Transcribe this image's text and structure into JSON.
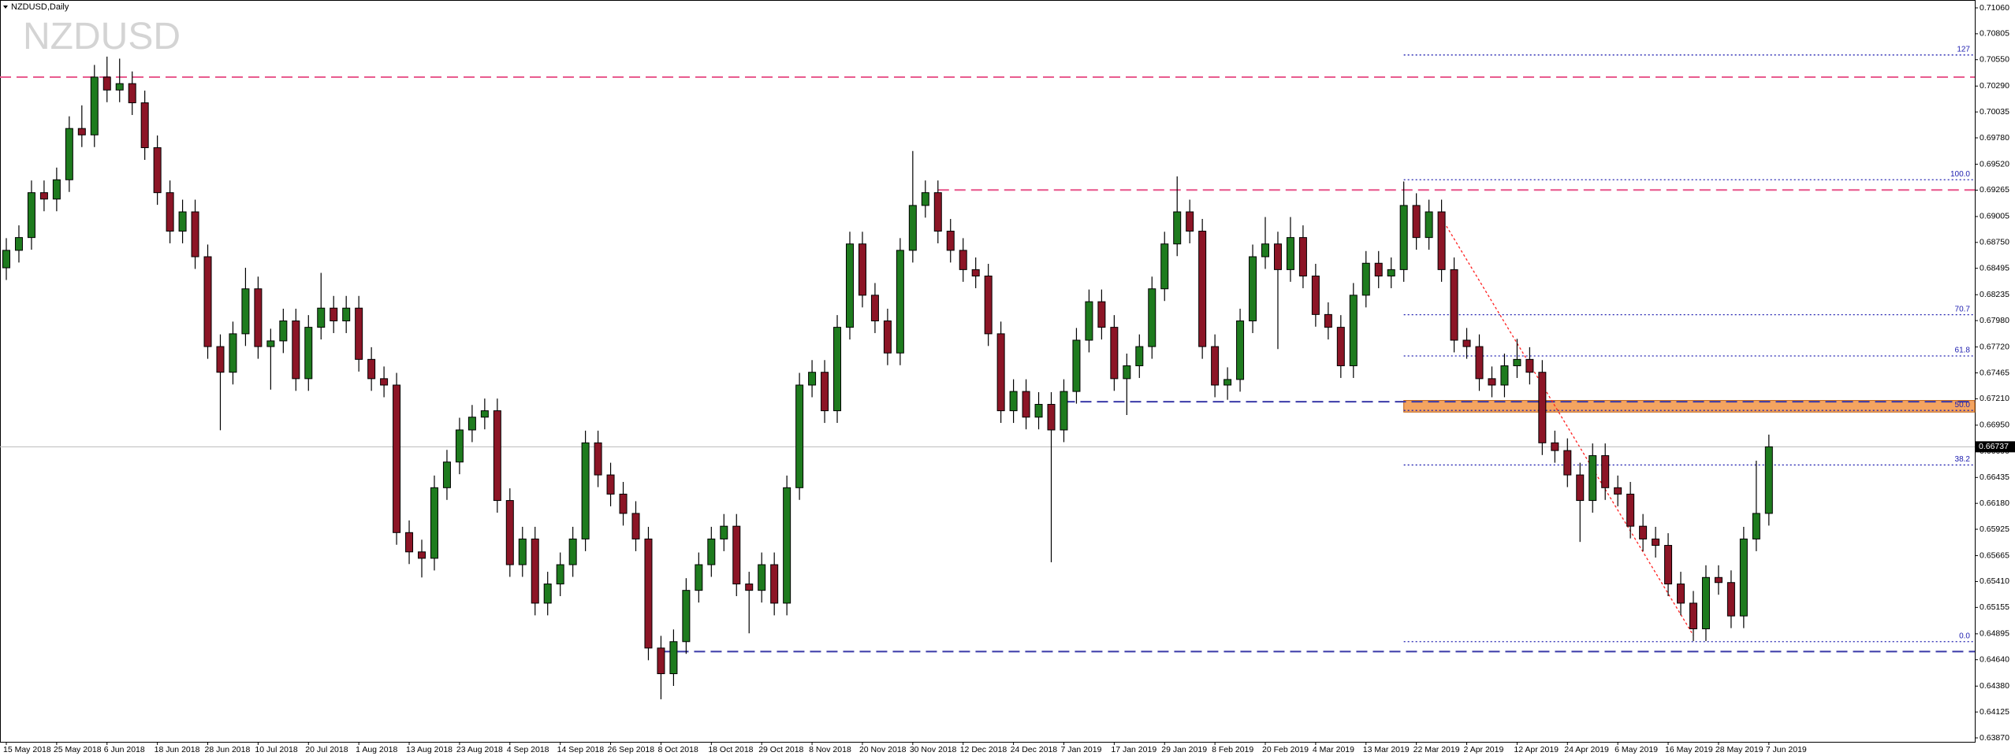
{
  "chart_data": {
    "type": "candlestick",
    "title": "NZDUSD,Daily",
    "watermark": "NZDUSD",
    "categories": [
      "15 May 2018",
      null,
      null,
      null,
      "25 May 2018",
      null,
      null,
      null,
      "6 Jun 2018",
      null,
      null,
      null,
      "18 Jun 2018",
      null,
      null,
      null,
      "28 Jun 2018",
      null,
      null,
      null,
      "10 Jul 2018",
      null,
      null,
      null,
      "20 Jul 2018",
      null,
      null,
      null,
      "1 Aug 2018",
      null,
      null,
      null,
      "13 Aug 2018",
      null,
      null,
      null,
      "23 Aug 2018",
      null,
      null,
      null,
      "4 Sep 2018",
      null,
      null,
      null,
      "14 Sep 2018",
      null,
      null,
      null,
      "26 Sep 2018",
      null,
      null,
      null,
      "8 Oct 2018",
      null,
      null,
      null,
      "18 Oct 2018",
      null,
      null,
      null,
      "29 Oct 2018",
      null,
      null,
      null,
      "8 Nov 2018",
      null,
      null,
      null,
      "20 Nov 2018",
      null,
      null,
      null,
      "30 Nov 2018",
      null,
      null,
      null,
      "12 Dec 2018",
      null,
      null,
      null,
      "24 Dec 2018",
      null,
      null,
      null,
      "7 Jan 2019",
      null,
      null,
      null,
      "17 Jan 2019",
      null,
      null,
      null,
      "29 Jan 2019",
      null,
      null,
      null,
      "8 Feb 2019",
      null,
      null,
      null,
      "20 Feb 2019",
      null,
      null,
      null,
      "4 Mar 2019",
      null,
      null,
      null,
      "13 Mar 2019",
      null,
      null,
      null,
      "22 Mar 2019",
      null,
      null,
      null,
      "2 Apr 2019",
      null,
      null,
      null,
      "12 Apr 2019",
      null,
      null,
      null,
      "24 Apr 2019",
      null,
      null,
      null,
      "6 May 2019",
      null,
      null,
      null,
      "16 May 2019",
      null,
      null,
      null,
      "28 May 2019",
      null,
      null,
      null,
      "7 Jun 2019"
    ],
    "candles": {
      "open": [
        0.685,
        0.68672,
        0.68798,
        0.6924,
        0.69177,
        0.69367,
        0.69872,
        0.69809,
        0.70378,
        0.70251,
        0.70314,
        0.70125,
        0.69683,
        0.6924,
        0.68861,
        0.69051,
        0.68609,
        0.67724,
        0.67471,
        0.6785,
        0.68293,
        0.67724,
        0.6778,
        0.67977,
        0.67408,
        0.67914,
        0.68103,
        0.67977,
        0.68103,
        0.67598,
        0.67408,
        0.67345,
        0.65892,
        0.65702,
        0.65639,
        0.66334,
        0.66587,
        0.66903,
        0.67029,
        0.67092,
        0.66208,
        0.65576,
        0.65829,
        0.65197,
        0.65386,
        0.65576,
        0.65829,
        0.66776,
        0.6646,
        0.66271,
        0.66081,
        0.65829,
        0.64755,
        0.64502,
        0.64818,
        0.65323,
        0.65576,
        0.65829,
        0.65955,
        0.65386,
        0.65323,
        0.65576,
        0.65197,
        0.66334,
        0.67345,
        0.67471,
        0.67092,
        0.67914,
        0.68735,
        0.6823,
        0.67977,
        0.67661,
        0.68672,
        0.69114,
        0.6924,
        0.68861,
        0.68672,
        0.68482,
        0.68419,
        0.6785,
        0.67092,
        0.67282,
        0.67029,
        0.67155,
        0.66903,
        0.67282,
        0.67787,
        0.68166,
        0.67914,
        0.67408,
        0.67535,
        0.67724,
        0.68293,
        0.68735,
        0.69051,
        0.68861,
        0.67724,
        0.67345,
        0.674,
        0.67977,
        0.68609,
        0.68735,
        0.68482,
        0.68798,
        0.68419,
        0.6804,
        0.67914,
        0.67535,
        0.6823,
        0.68545,
        0.68419,
        0.68482,
        0.69114,
        0.68798,
        0.69051,
        0.68482,
        0.67787,
        0.67724,
        0.67408,
        0.67345,
        0.67535,
        0.67598,
        0.67471,
        0.66776,
        0.667,
        0.6646,
        0.66208,
        0.6665,
        0.66334,
        0.66271,
        0.65955,
        0.65829,
        0.65766,
        0.65386,
        0.65197,
        0.64944,
        0.6545,
        0.654,
        0.65071,
        0.65829,
        0.66081
      ],
      "high": [
        0.68792,
        0.68918,
        0.6936,
        0.6936,
        0.69487,
        0.69992,
        0.701,
        0.70498,
        0.7058,
        0.7056,
        0.70434,
        0.70245,
        0.69803,
        0.6936,
        0.69171,
        0.69171,
        0.68729,
        0.67844,
        0.6797,
        0.685,
        0.68413,
        0.679,
        0.68097,
        0.68097,
        0.68034,
        0.6845,
        0.68223,
        0.68223,
        0.68223,
        0.67718,
        0.67528,
        0.67465,
        0.66012,
        0.65822,
        0.66454,
        0.66707,
        0.67023,
        0.67149,
        0.67212,
        0.67212,
        0.66328,
        0.65949,
        0.65949,
        0.65506,
        0.65696,
        0.65949,
        0.66896,
        0.66896,
        0.6658,
        0.66391,
        0.66201,
        0.65949,
        0.64875,
        0.64938,
        0.65443,
        0.65696,
        0.65949,
        0.66075,
        0.66075,
        0.65506,
        0.65696,
        0.65696,
        0.66454,
        0.67465,
        0.67591,
        0.67591,
        0.68034,
        0.68855,
        0.68855,
        0.6835,
        0.68097,
        0.68792,
        0.6965,
        0.6936,
        0.6936,
        0.68981,
        0.68792,
        0.68602,
        0.68539,
        0.6797,
        0.67402,
        0.67402,
        0.67275,
        0.67275,
        0.67402,
        0.67907,
        0.68286,
        0.68286,
        0.68034,
        0.67655,
        0.67844,
        0.68413,
        0.68855,
        0.694,
        0.69171,
        0.68981,
        0.67844,
        0.6752,
        0.68097,
        0.68729,
        0.69,
        0.68855,
        0.69,
        0.68918,
        0.68539,
        0.6816,
        0.68034,
        0.6835,
        0.68665,
        0.68665,
        0.68602,
        0.6935,
        0.69234,
        0.69171,
        0.69171,
        0.68602,
        0.67907,
        0.67844,
        0.67528,
        0.67655,
        0.678,
        0.67718,
        0.67591,
        0.66896,
        0.6682,
        0.6658,
        0.6677,
        0.6677,
        0.66454,
        0.66391,
        0.66075,
        0.65949,
        0.65886,
        0.65506,
        0.65317,
        0.6557,
        0.6557,
        0.6552,
        0.65949,
        0.666,
        0.66857
      ],
      "low": [
        0.6838,
        0.68552,
        0.68678,
        0.69057,
        0.69057,
        0.69247,
        0.69689,
        0.69689,
        0.70131,
        0.70131,
        0.70005,
        0.69563,
        0.6912,
        0.68741,
        0.68741,
        0.68489,
        0.67604,
        0.669,
        0.67351,
        0.6773,
        0.67604,
        0.673,
        0.6766,
        0.67288,
        0.67288,
        0.67794,
        0.67857,
        0.67857,
        0.67478,
        0.67288,
        0.67225,
        0.65772,
        0.65582,
        0.6545,
        0.65519,
        0.66214,
        0.66467,
        0.66783,
        0.66909,
        0.66088,
        0.65456,
        0.65456,
        0.65077,
        0.65077,
        0.65266,
        0.65456,
        0.65709,
        0.6634,
        0.66151,
        0.65961,
        0.65709,
        0.64635,
        0.6425,
        0.64382,
        0.64698,
        0.65203,
        0.65456,
        0.65709,
        0.65266,
        0.649,
        0.65203,
        0.65077,
        0.65077,
        0.66214,
        0.67225,
        0.66972,
        0.66972,
        0.67794,
        0.6811,
        0.67857,
        0.67541,
        0.67541,
        0.68552,
        0.68994,
        0.68741,
        0.68552,
        0.68362,
        0.68299,
        0.6773,
        0.66972,
        0.66972,
        0.66909,
        0.66909,
        0.656,
        0.66783,
        0.67162,
        0.67667,
        0.67794,
        0.67288,
        0.6705,
        0.67415,
        0.67604,
        0.68173,
        0.68615,
        0.68741,
        0.67604,
        0.67225,
        0.672,
        0.6728,
        0.67857,
        0.68489,
        0.677,
        0.68362,
        0.68299,
        0.6792,
        0.67794,
        0.67415,
        0.67415,
        0.6811,
        0.68299,
        0.68299,
        0.68362,
        0.68678,
        0.68678,
        0.68362,
        0.67667,
        0.67604,
        0.67288,
        0.67225,
        0.67225,
        0.67415,
        0.67351,
        0.66656,
        0.6658,
        0.6634,
        0.658,
        0.66088,
        0.66214,
        0.66151,
        0.65835,
        0.65709,
        0.65646,
        0.65266,
        0.65077,
        0.64824,
        0.64824,
        0.6528,
        0.64951,
        0.64951,
        0.65709,
        0.65961
      ],
      "close": [
        0.68672,
        0.68798,
        0.6924,
        0.69177,
        0.69367,
        0.69872,
        0.69809,
        0.70378,
        0.70251,
        0.70314,
        0.70125,
        0.69683,
        0.6924,
        0.68861,
        0.69051,
        0.68609,
        0.67724,
        0.67471,
        0.6785,
        0.68293,
        0.67724,
        0.6778,
        0.67977,
        0.67408,
        0.67914,
        0.68103,
        0.67977,
        0.68103,
        0.67598,
        0.67408,
        0.67345,
        0.65892,
        0.65702,
        0.65639,
        0.66334,
        0.66587,
        0.66903,
        0.67029,
        0.67092,
        0.66208,
        0.65576,
        0.65829,
        0.65197,
        0.65386,
        0.65576,
        0.65829,
        0.66776,
        0.6646,
        0.66271,
        0.66081,
        0.65829,
        0.64755,
        0.64502,
        0.64818,
        0.65323,
        0.65576,
        0.65829,
        0.65955,
        0.65386,
        0.65323,
        0.65576,
        0.65197,
        0.66334,
        0.67345,
        0.67471,
        0.67092,
        0.67914,
        0.68735,
        0.6823,
        0.67977,
        0.67661,
        0.68672,
        0.69114,
        0.6924,
        0.68861,
        0.68672,
        0.68482,
        0.68419,
        0.6785,
        0.67092,
        0.67282,
        0.67029,
        0.67155,
        0.66903,
        0.67282,
        0.67787,
        0.68166,
        0.67914,
        0.67408,
        0.67535,
        0.67724,
        0.68293,
        0.68735,
        0.69051,
        0.68861,
        0.67724,
        0.67345,
        0.674,
        0.67977,
        0.68609,
        0.68735,
        0.68482,
        0.68798,
        0.68419,
        0.6804,
        0.67914,
        0.67535,
        0.6823,
        0.68545,
        0.68419,
        0.68482,
        0.69114,
        0.68798,
        0.69051,
        0.68482,
        0.67787,
        0.67724,
        0.67408,
        0.67345,
        0.67535,
        0.67598,
        0.67471,
        0.66776,
        0.667,
        0.6646,
        0.66208,
        0.6665,
        0.66334,
        0.66271,
        0.65955,
        0.65829,
        0.65766,
        0.65386,
        0.65197,
        0.64944,
        0.6545,
        0.654,
        0.65071,
        0.65829,
        0.66081,
        0.66737
      ]
    },
    "up_color": "#1e7b1e",
    "down_color": "#8c1526",
    "ylim": [
      0.6387,
      0.7106
    ],
    "yticks": [
      {
        "value": 0.7106,
        "label": "0.71060"
      },
      {
        "value": 0.70805,
        "label": "0.70805"
      },
      {
        "value": 0.7055,
        "label": "0.70550"
      },
      {
        "value": 0.7029,
        "label": "0.70290"
      },
      {
        "value": 0.70035,
        "label": "0.70035"
      },
      {
        "value": 0.6978,
        "label": "0.69780"
      },
      {
        "value": 0.6952,
        "label": "0.69520"
      },
      {
        "value": 0.69265,
        "label": "0.69265"
      },
      {
        "value": 0.69005,
        "label": "0.69005"
      },
      {
        "value": 0.6875,
        "label": "0.68750"
      },
      {
        "value": 0.68495,
        "label": "0.68495"
      },
      {
        "value": 0.68235,
        "label": "0.68235"
      },
      {
        "value": 0.6798,
        "label": "0.67980"
      },
      {
        "value": 0.6772,
        "label": "0.67720"
      },
      {
        "value": 0.67465,
        "label": "0.67465"
      },
      {
        "value": 0.6721,
        "label": "0.67210"
      },
      {
        "value": 0.6695,
        "label": "0.66950"
      },
      {
        "value": 0.6669,
        "label": "0.66690"
      },
      {
        "value": 0.66435,
        "label": "0.66435"
      },
      {
        "value": 0.6618,
        "label": "0.66180"
      },
      {
        "value": 0.65925,
        "label": "0.65925"
      },
      {
        "value": 0.65665,
        "label": "0.65665"
      },
      {
        "value": 0.6541,
        "label": "0.65410"
      },
      {
        "value": 0.65155,
        "label": "0.65155"
      },
      {
        "value": 0.64895,
        "label": "0.64895"
      },
      {
        "value": 0.6464,
        "label": "0.64640"
      },
      {
        "value": 0.6438,
        "label": "0.64380"
      },
      {
        "value": 0.64125,
        "label": "0.64125"
      },
      {
        "value": 0.6387,
        "label": "0.63870"
      }
    ],
    "current_price": 0.66737,
    "hlines": [
      {
        "price": 0.70378,
        "from": 0,
        "color": "#e8548a"
      },
      {
        "price": 0.69266,
        "from": 74,
        "color": "#e8548a"
      },
      {
        "price": 0.67181,
        "from": 84,
        "color": "#3a3aa8"
      },
      {
        "price": 0.6472,
        "from": 52,
        "color": "#3a3aa8"
      }
    ],
    "zone": {
      "from": 111,
      "high": 0.67193,
      "low": 0.67079,
      "color": "#f4a460"
    },
    "trendline": {
      "x": [
        114,
        134
      ],
      "y": [
        0.6899,
        0.6488
      ],
      "color": "#ff2020"
    },
    "fibonacci": {
      "from": 111,
      "color": "#2020b0",
      "levels": [
        {
          "label": "127",
          "price": 0.70596
        },
        {
          "label": "100.0",
          "price": 0.69367
        },
        {
          "label": "70.7",
          "price": 0.68038
        },
        {
          "label": "61.8",
          "price": 0.67632
        },
        {
          "label": "50.0",
          "price": 0.67095
        },
        {
          "label": "38.2",
          "price": 0.66558
        },
        {
          "label": "0.0",
          "price": 0.64818
        }
      ]
    }
  }
}
